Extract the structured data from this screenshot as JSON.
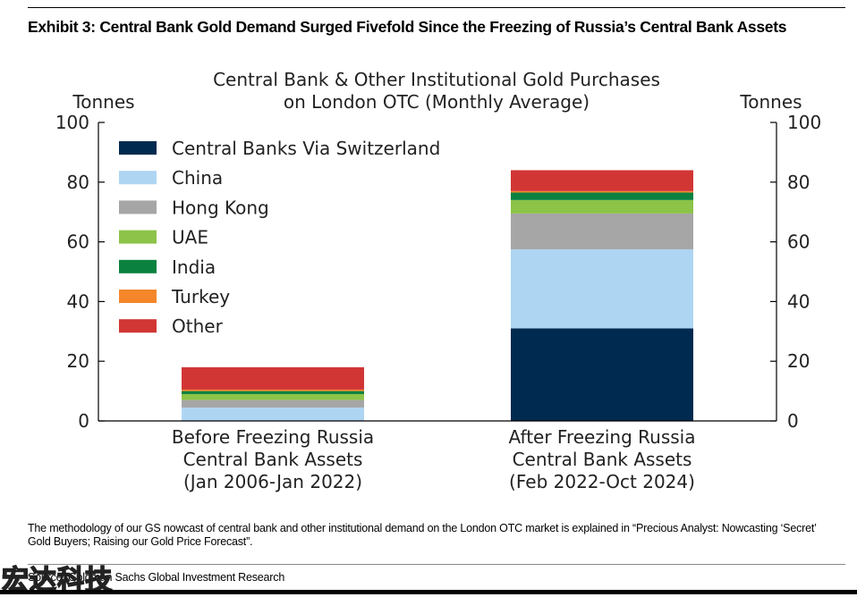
{
  "exhibit_title": "Exhibit 3: Central Bank Gold Demand Surged Fivefold Since the Freezing of Russia’s Central Bank Assets",
  "note": "The methodology of our GS nowcast of central bank and other institutional demand on the London OTC market is explained in “Precious Analyst: Nowcasting ‘Secret’ Gold Buyers; Raising our Gold Price Forecast”.",
  "source": "Source: Goldman Sachs Global Investment Research",
  "watermark": "宏达科技",
  "chart_data": {
    "type": "bar",
    "stacked": true,
    "title": [
      "Central Bank & Other Institutional Gold Purchases",
      "on London OTC (Monthly Average)"
    ],
    "ylabel_left": "Tonnes",
    "ylabel_right": "Tonnes",
    "ylim": [
      0,
      100
    ],
    "yticks": [
      0,
      20,
      40,
      60,
      80,
      100
    ],
    "grid": false,
    "legend_position": "top-left",
    "categories": [
      [
        "Before Freezing Russia",
        "Central Bank Assets",
        "(Jan 2006-Jan 2022)"
      ],
      [
        "After Freezing Russia",
        "Central Bank Assets",
        "(Feb 2022-Oct 2024)"
      ]
    ],
    "series": [
      {
        "name": "Central Banks Via Switzerland",
        "color": "#002a4f",
        "values": [
          0,
          31
        ]
      },
      {
        "name": "China",
        "color": "#aed5f2",
        "values": [
          4.5,
          26.5
        ]
      },
      {
        "name": "Hong Kong",
        "color": "#a6a6a6",
        "values": [
          2.5,
          12
        ]
      },
      {
        "name": "UAE",
        "color": "#8cc348",
        "values": [
          2,
          4.5
        ]
      },
      {
        "name": "India",
        "color": "#0b8140",
        "values": [
          1,
          2.5
        ]
      },
      {
        "name": "Turkey",
        "color": "#f5872a",
        "values": [
          0.5,
          0.5
        ]
      },
      {
        "name": "Other",
        "color": "#d13635",
        "values": [
          7.5,
          7
        ]
      }
    ]
  }
}
